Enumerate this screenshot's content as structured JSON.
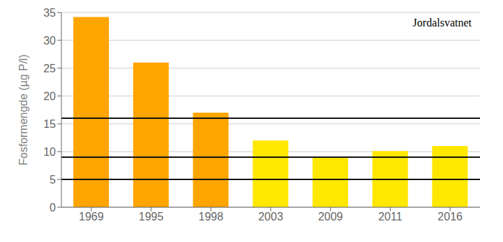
{
  "chart_data": {
    "type": "bar",
    "title": "Jordalsvatnet",
    "ylabel": "Fosformengde (µg P/l)",
    "categories": [
      "1969",
      "1995",
      "1998",
      "2003",
      "2009",
      "2011",
      "2016"
    ],
    "values": [
      34.2,
      26.0,
      17.0,
      12.0,
      9.0,
      10.1,
      11.0
    ],
    "colors": [
      "#FFA500",
      "#FFA500",
      "#FFA500",
      "#FFE800",
      "#FFE800",
      "#FFE800",
      "#FFE800"
    ],
    "hlines": {
      "values": [
        5,
        9,
        16
      ],
      "color": "#111111"
    },
    "ylim": [
      0,
      35
    ],
    "yticks": [
      0,
      5,
      10,
      15,
      20,
      25,
      30,
      35
    ],
    "grid": true
  }
}
